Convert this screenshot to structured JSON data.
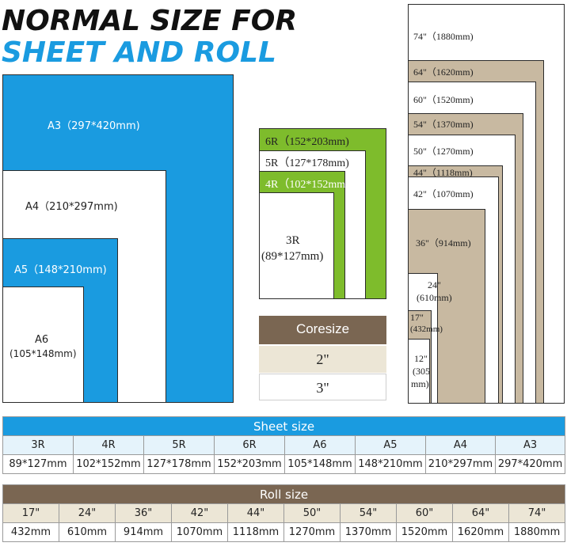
{
  "title": {
    "line1": "NORMAL SIZE FOR",
    "line2": "SHEET AND ROLL"
  },
  "colors": {
    "blue": "#1a9be0",
    "green": "#7ebc2c",
    "tan": "#c8b9a1",
    "brown": "#7a6652"
  },
  "sheets_a": {
    "a3": "A3（297*420mm)",
    "a4": "A4（210*297mm)",
    "a5": "A5（148*210mm)",
    "a6_name": "A6",
    "a6_size": "(105*148mm)"
  },
  "sheets_r": {
    "r6": "6R（152*203mm)",
    "r5": "5R（127*178mm)",
    "r4": "4R（102*152mm)",
    "r3_name": "3R",
    "r3_size": "(89*127mm)"
  },
  "coresize": {
    "title": "Coresize",
    "values": [
      "2\"",
      "3\""
    ]
  },
  "rolls_diagram": {
    "r74": "74\"（1880mm)",
    "r64": "64\"（1620mm)",
    "r60": "60\"（1520mm)",
    "r54": "54\"（1370mm)",
    "r50": "50\"（1270mm)",
    "r44": "44\"（1118mm)",
    "r42": "42\"（1070mm)",
    "r36": "36\"（914mm)",
    "r24a": "24\"",
    "r24b": "(610mm)",
    "r17a": "17\"",
    "r17b": "(432mm)",
    "r12a": "12\"",
    "r12b": "(305",
    "r12c": "mm)"
  },
  "sheet_table": {
    "title": "Sheet size",
    "headers": [
      "3R",
      "4R",
      "5R",
      "6R",
      "A6",
      "A5",
      "A4",
      "A3"
    ],
    "values": [
      "89*127mm",
      "102*152mm",
      "127*178mm",
      "152*203mm",
      "105*148mm",
      "148*210mm",
      "210*297mm",
      "297*420mm"
    ]
  },
  "roll_table": {
    "title": "Roll size",
    "headers": [
      "17\"",
      "24\"",
      "36\"",
      "42\"",
      "44\"",
      "50\"",
      "54\"",
      "60\"",
      "64\"",
      "74\""
    ],
    "values": [
      "432mm",
      "610mm",
      "914mm",
      "1070mm",
      "1118mm",
      "1270mm",
      "1370mm",
      "1520mm",
      "1620mm",
      "1880mm"
    ]
  }
}
